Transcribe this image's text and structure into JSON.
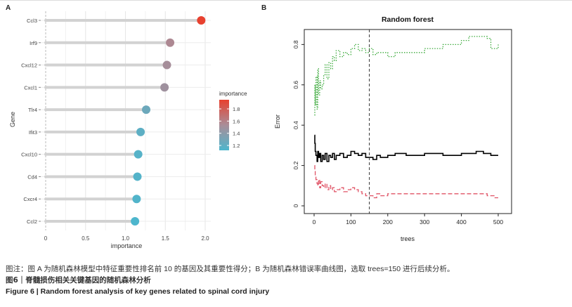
{
  "figure": {
    "panels": [
      "A",
      "B"
    ],
    "note": "图注：图 A 为随机森林模型中特征重要性排名前 10 的基因及其重要性得分；B 为随机森林错误率曲线图，选取 trees=150 进行后续分析。",
    "caption_cn": "图6｜脊髓损伤相关关键基因的随机森林分析",
    "caption_en": "Figure 6 | Random forest analysis of key genes related to spinal cord injury"
  },
  "chart_data": [
    {
      "type": "lollipop",
      "panel": "A",
      "title": "",
      "xlabel": "importance",
      "ylabel": "Gene",
      "categories": [
        "Ccl3",
        "Irf9",
        "Cxcl12",
        "Cxcl1",
        "Tlr4",
        "Ifit3",
        "Cxcl10",
        "Cd4",
        "Cxcr4",
        "Ccl2"
      ],
      "values": [
        1.95,
        1.56,
        1.52,
        1.49,
        1.26,
        1.19,
        1.16,
        1.15,
        1.14,
        1.12
      ],
      "xlim": [
        0,
        2.0
      ],
      "xticks": [
        "0",
        "0.5",
        "1.0",
        "1.5",
        "2.0"
      ],
      "grid": true,
      "legend": {
        "title": "importance",
        "position": "right",
        "ticks": [
          "1.8",
          "1.6",
          "1.4",
          "1.2"
        ],
        "tick_values": [
          1.8,
          1.6,
          1.4,
          1.2
        ],
        "range": [
          1.12,
          1.95
        ],
        "colors": [
          "#4db6cd",
          "#a98d98",
          "#e8412f"
        ]
      },
      "stem_color": "#d2d2d2"
    },
    {
      "type": "line",
      "panel": "B",
      "title": "Random forest",
      "xlabel": "trees",
      "ylabel": "Error",
      "xlim": [
        0,
        500
      ],
      "ylim": [
        0,
        0.85
      ],
      "xticks": [
        "0",
        "100",
        "200",
        "300",
        "400",
        "500"
      ],
      "yticks": [
        "0",
        "0.2",
        "0.4",
        "0.6",
        "0.8"
      ],
      "vline_x": 150,
      "series": [
        {
          "color": "#000000",
          "dash": "solid",
          "x": [
            1,
            2,
            3,
            5,
            8,
            10,
            12,
            15,
            18,
            22,
            26,
            30,
            35,
            40,
            45,
            50,
            55,
            60,
            70,
            80,
            90,
            100,
            110,
            120,
            130,
            140,
            150,
            160,
            170,
            180,
            200,
            220,
            250,
            300,
            350,
            400,
            420,
            440,
            460,
            470,
            480,
            490,
            500
          ],
          "y": [
            0.35,
            0.31,
            0.27,
            0.25,
            0.22,
            0.27,
            0.24,
            0.26,
            0.22,
            0.25,
            0.23,
            0.26,
            0.22,
            0.25,
            0.24,
            0.26,
            0.23,
            0.25,
            0.26,
            0.24,
            0.25,
            0.27,
            0.26,
            0.25,
            0.26,
            0.24,
            0.24,
            0.23,
            0.25,
            0.24,
            0.25,
            0.26,
            0.25,
            0.26,
            0.25,
            0.26,
            0.26,
            0.27,
            0.26,
            0.26,
            0.25,
            0.25,
            0.25
          ]
        },
        {
          "color": "#e05366",
          "dash": "dashed",
          "x": [
            1,
            2,
            3,
            5,
            8,
            10,
            12,
            15,
            18,
            22,
            26,
            30,
            35,
            40,
            45,
            50,
            55,
            60,
            70,
            80,
            90,
            100,
            110,
            120,
            130,
            140,
            150,
            160,
            170,
            180,
            200,
            220,
            250,
            300,
            350,
            400,
            420,
            440,
            460,
            470,
            480,
            490,
            500
          ],
          "y": [
            0.2,
            0.18,
            0.15,
            0.13,
            0.11,
            0.1,
            0.13,
            0.09,
            0.12,
            0.1,
            0.09,
            0.11,
            0.08,
            0.1,
            0.08,
            0.09,
            0.07,
            0.08,
            0.09,
            0.07,
            0.08,
            0.09,
            0.08,
            0.07,
            0.06,
            0.05,
            0.05,
            0.04,
            0.06,
            0.05,
            0.06,
            0.06,
            0.06,
            0.06,
            0.06,
            0.06,
            0.06,
            0.06,
            0.06,
            0.05,
            0.05,
            0.04,
            0.04
          ]
        },
        {
          "color": "#3caa3c",
          "dash": "dotted",
          "x": [
            1,
            2,
            3,
            5,
            8,
            10,
            12,
            15,
            18,
            22,
            26,
            30,
            35,
            40,
            45,
            50,
            55,
            60,
            70,
            80,
            90,
            100,
            110,
            120,
            130,
            140,
            150,
            160,
            170,
            180,
            200,
            220,
            250,
            300,
            350,
            400,
            420,
            440,
            460,
            470,
            480,
            490,
            500
          ],
          "y": [
            0.45,
            0.6,
            0.5,
            0.64,
            0.48,
            0.68,
            0.55,
            0.62,
            0.58,
            0.6,
            0.65,
            0.7,
            0.63,
            0.71,
            0.68,
            0.74,
            0.72,
            0.77,
            0.74,
            0.76,
            0.75,
            0.78,
            0.8,
            0.77,
            0.78,
            0.76,
            0.78,
            0.75,
            0.76,
            0.76,
            0.74,
            0.76,
            0.76,
            0.78,
            0.8,
            0.82,
            0.84,
            0.84,
            0.84,
            0.83,
            0.78,
            0.78,
            0.8
          ]
        }
      ]
    }
  ]
}
